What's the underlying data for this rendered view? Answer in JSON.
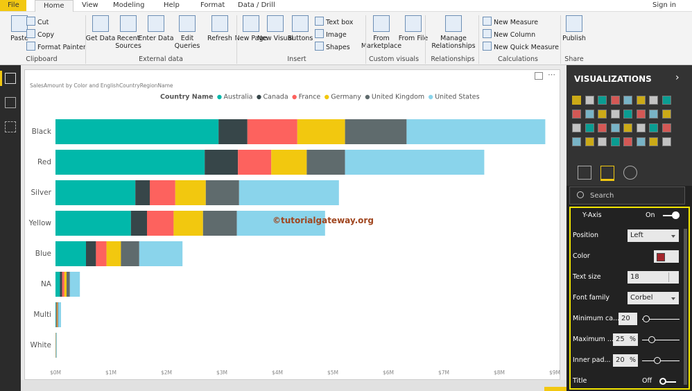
{
  "ui": {
    "tabs": [
      "File",
      "Home",
      "View",
      "Modeling",
      "Help",
      "Format",
      "Data / Drill"
    ],
    "sign_in": "Sign in",
    "ribbon": [
      {
        "label": "Clipboard",
        "buttons": [
          "Paste",
          "Cut",
          "Copy",
          "Format Painter"
        ]
      },
      {
        "label": "External data",
        "buttons": [
          "Get Data",
          "Recent Sources",
          "Enter Data",
          "Edit Queries",
          "Refresh"
        ]
      },
      {
        "label": "Insert",
        "buttons": [
          "New Page",
          "New Visual",
          "Buttons",
          "Text box",
          "Image",
          "Shapes"
        ]
      },
      {
        "label": "Custom visuals",
        "buttons": [
          "From Marketplace",
          "From File"
        ]
      },
      {
        "label": "Relationships",
        "buttons": [
          "Manage Relationships"
        ]
      },
      {
        "label": "Calculations",
        "buttons": [
          "New Measure",
          "New Column",
          "New Quick Measure"
        ]
      },
      {
        "label": "Share",
        "buttons": [
          "Publish"
        ]
      }
    ],
    "pane": {
      "title": "VISUALIZATIONS",
      "search": "Search",
      "section": "Y-Axis",
      "section_toggle": "On",
      "settings": [
        {
          "label": "Position",
          "value": "Left"
        },
        {
          "label": "Color",
          "color": "#a4262c"
        },
        {
          "label": "Text size",
          "value": "18"
        },
        {
          "label": "Font family",
          "value": "Corbel"
        },
        {
          "label": "Minimum ca...",
          "value": "20"
        },
        {
          "label": "Maximum ...",
          "value": "25",
          "unit": "%"
        },
        {
          "label": "Inner pad...",
          "value": "20",
          "unit": "%"
        },
        {
          "label": "Title",
          "value": "Off"
        }
      ]
    },
    "watermark": "©tutorialgateway.org"
  },
  "chart_data": {
    "type": "stacked-bar-horizontal",
    "title": "SalesAmount by Color and EnglishCountryRegionName",
    "legend_title": "Country Name",
    "categories": [
      "Black",
      "Red",
      "Silver",
      "Yellow",
      "Blue",
      "NA",
      "Multi",
      "White"
    ],
    "series": [
      {
        "name": "Australia",
        "color": "#01b8aa",
        "values": [
          2.94,
          2.69,
          1.44,
          1.36,
          0.55,
          0.08,
          0.01,
          0.003
        ]
      },
      {
        "name": "Canada",
        "color": "#374649",
        "values": [
          0.52,
          0.6,
          0.26,
          0.29,
          0.18,
          0.04,
          0.01,
          0.003
        ]
      },
      {
        "name": "France",
        "color": "#fd625e",
        "values": [
          0.9,
          0.6,
          0.46,
          0.48,
          0.19,
          0.04,
          0.01,
          0.003
        ]
      },
      {
        "name": "Germany",
        "color": "#f2c80f",
        "values": [
          0.86,
          0.64,
          0.55,
          0.53,
          0.26,
          0.04,
          0.01,
          0.003
        ]
      },
      {
        "name": "United Kingdom",
        "color": "#5f6b6d",
        "values": [
          1.11,
          0.69,
          0.6,
          0.61,
          0.33,
          0.06,
          0.01,
          0.003
        ]
      },
      {
        "name": "United States",
        "color": "#8ad4eb",
        "values": [
          2.5,
          2.51,
          1.8,
          1.59,
          0.78,
          0.18,
          0.05,
          0.01
        ]
      }
    ],
    "xlim": [
      0,
      9
    ],
    "xticks": [
      {
        "value": 0,
        "label": "$0M"
      },
      {
        "value": 1,
        "label": "$1M"
      },
      {
        "value": 2,
        "label": "$2M"
      },
      {
        "value": 3,
        "label": "$3M"
      },
      {
        "value": 4,
        "label": "$4M"
      },
      {
        "value": 5,
        "label": "$5M"
      },
      {
        "value": 6,
        "label": "$6M"
      },
      {
        "value": 7,
        "label": "$7M"
      },
      {
        "value": 8,
        "label": "$8M"
      },
      {
        "value": 9,
        "label": "$9M"
      }
    ],
    "grid": false
  }
}
